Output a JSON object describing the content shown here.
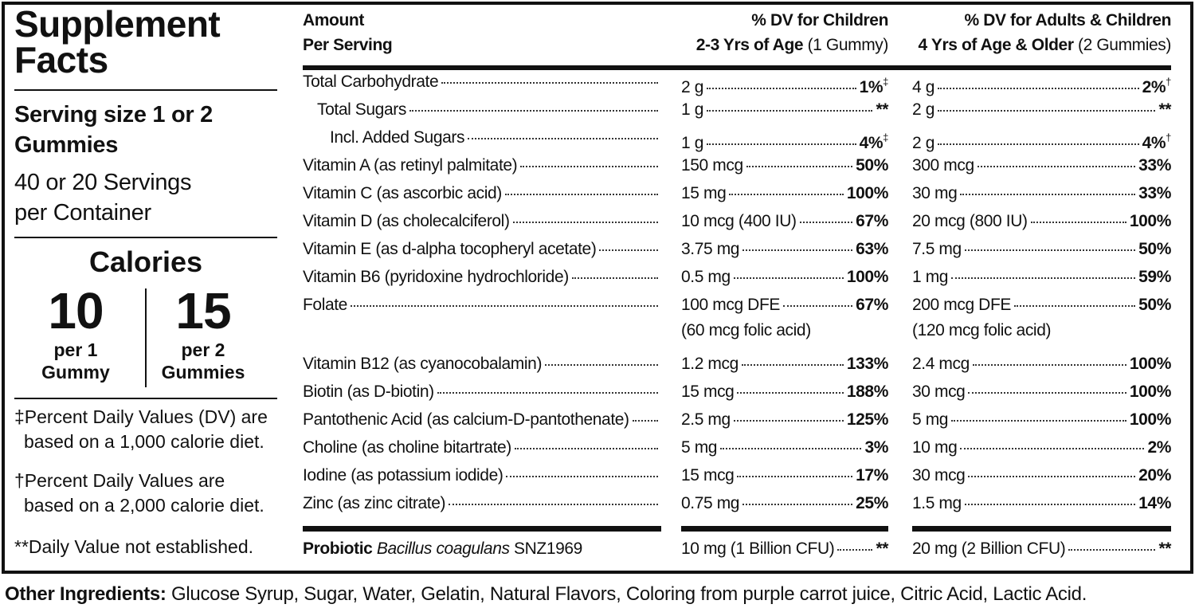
{
  "panel": {
    "title": [
      "Supplement",
      "Facts"
    ],
    "serving_size": [
      "Serving size 1 or 2",
      "Gummies"
    ],
    "servings": [
      "40 or 20 Servings",
      "per Container"
    ],
    "calories_label": "Calories",
    "calories": [
      {
        "value": "10",
        "unit": [
          "per 1",
          "Gummy"
        ]
      },
      {
        "value": "15",
        "unit": [
          "per 2",
          "Gummies"
        ]
      }
    ],
    "footnotes": [
      [
        "‡Percent Daily Values (DV) are",
        "based on a 1,000 calorie diet."
      ],
      [
        "†Percent Daily Values are",
        "based on a 2,000 calorie diet."
      ],
      [
        "**Daily Value not established."
      ]
    ]
  },
  "table": {
    "headers": {
      "amount": [
        "Amount",
        "Per Serving"
      ],
      "children": {
        "title": "% DV for Children",
        "age": "2-3 Yrs of Age",
        "serving": "(1 Gummy)"
      },
      "adults": {
        "title": "% DV for Adults & Children",
        "age": "4 Yrs of Age & Older",
        "serving": "(2 Gummies)"
      }
    },
    "rows": [
      {
        "name": "Total Carbohydrate",
        "children": {
          "amount": "2 g",
          "dv": "1%",
          "note": "‡"
        },
        "adults": {
          "amount": "4 g",
          "dv": "2%",
          "note": "†"
        }
      },
      {
        "name": "Total Sugars",
        "children": {
          "amount": "1 g",
          "dv": "**"
        },
        "adults": {
          "amount": "2 g",
          "dv": "**"
        }
      },
      {
        "name": "Incl. Added Sugars",
        "children": {
          "amount": "1 g",
          "dv": "4%",
          "note": "‡"
        },
        "adults": {
          "amount": "2 g",
          "dv": "4%",
          "note": "†"
        }
      },
      {
        "name": "Vitamin A (as retinyl palmitate)",
        "children": {
          "amount": "150 mcg",
          "dv": "50%"
        },
        "adults": {
          "amount": "300 mcg",
          "dv": "33%"
        }
      },
      {
        "name": "Vitamin C (as ascorbic acid)",
        "children": {
          "amount": "15 mg",
          "dv": "100%"
        },
        "adults": {
          "amount": "30 mg",
          "dv": "33%"
        }
      },
      {
        "name": "Vitamin D (as cholecalciferol)",
        "children": {
          "amount": "10 mcg (400 IU)",
          "dv": "67%"
        },
        "adults": {
          "amount": "20 mcg (800 IU)",
          "dv": "100%"
        }
      },
      {
        "name": "Vitamin E (as d-alpha tocopheryl acetate)",
        "children": {
          "amount": "3.75 mg",
          "dv": "63%"
        },
        "adults": {
          "amount": "7.5 mg",
          "dv": "50%"
        }
      },
      {
        "name": "Vitamin B6 (pyridoxine hydrochloride)",
        "children": {
          "amount": "0.5 mg",
          "dv": "100%"
        },
        "adults": {
          "amount": "1 mg",
          "dv": "59%"
        }
      },
      {
        "name": "Folate",
        "children": {
          "amount": "100 mcg DFE",
          "detail": "(60 mcg folic acid)",
          "dv": "67%"
        },
        "adults": {
          "amount": "200 mcg DFE",
          "detail": "(120 mcg folic acid)",
          "dv": "50%"
        }
      },
      {
        "name": "Vitamin B12 (as cyanocobalamin)",
        "children": {
          "amount": "1.2 mcg",
          "dv": "133%"
        },
        "adults": {
          "amount": "2.4 mcg",
          "dv": "100%"
        }
      },
      {
        "name": "Biotin (as D-biotin)",
        "children": {
          "amount": "15 mcg",
          "dv": "188%"
        },
        "adults": {
          "amount": "30 mcg",
          "dv": "100%"
        }
      },
      {
        "name": "Pantothenic Acid (as calcium-D-pantothenate)",
        "children": {
          "amount": "2.5 mg",
          "dv": "125%"
        },
        "adults": {
          "amount": "5 mg",
          "dv": "100%"
        }
      },
      {
        "name": "Choline (as choline bitartrate)",
        "children": {
          "amount": "5 mg",
          "dv": "3%"
        },
        "adults": {
          "amount": "10 mg",
          "dv": "2%"
        }
      },
      {
        "name": "Iodine (as potassium iodide)",
        "children": {
          "amount": "15 mcg",
          "dv": "17%"
        },
        "adults": {
          "amount": "30 mcg",
          "dv": "20%"
        }
      },
      {
        "name": "Zinc (as zinc citrate)",
        "children": {
          "amount": "0.75 mg",
          "dv": "25%"
        },
        "adults": {
          "amount": "1.5 mg",
          "dv": "14%"
        }
      }
    ],
    "probiotic": {
      "label": "Probiotic",
      "organism": "Bacillus coagulans",
      "strain": "SNZ1969",
      "children": {
        "amount": "10 mg (1 Billion CFU)",
        "dv": "**"
      },
      "adults": {
        "amount": "20 mg (2 Billion CFU)",
        "dv": "**"
      }
    }
  },
  "other_ingredients": {
    "label": "Other Ingredients:",
    "text": "Glucose Syrup, Sugar, Water, Gelatin, Natural Flavors, Coloring from purple carrot juice, Citric Acid, Lactic Acid."
  }
}
